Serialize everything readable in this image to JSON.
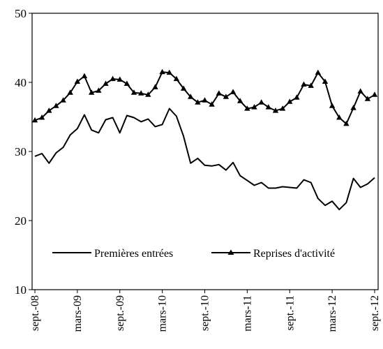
{
  "chart_data": {
    "type": "line",
    "title": "",
    "xlabel": "",
    "ylabel": "",
    "ylim": [
      10,
      50
    ],
    "yticks": [
      10,
      20,
      30,
      40,
      50
    ],
    "grid": false,
    "legend_position": "lower-center",
    "x_tick_labels": [
      "sept.-08",
      "mars-09",
      "sept.-09",
      "mars-10",
      "sept.-10",
      "mars-11",
      "sept.-11",
      "mars-12",
      "sept.-12"
    ],
    "x": [
      "2008-09",
      "2008-10",
      "2008-11",
      "2008-12",
      "2009-01",
      "2009-02",
      "2009-03",
      "2009-04",
      "2009-05",
      "2009-06",
      "2009-07",
      "2009-08",
      "2009-09",
      "2009-10",
      "2009-11",
      "2009-12",
      "2010-01",
      "2010-02",
      "2010-03",
      "2010-04",
      "2010-05",
      "2010-06",
      "2010-07",
      "2010-08",
      "2010-09",
      "2010-10",
      "2010-11",
      "2010-12",
      "2011-01",
      "2011-02",
      "2011-03",
      "2011-04",
      "2011-05",
      "2011-06",
      "2011-07",
      "2011-08",
      "2011-09",
      "2011-10",
      "2011-11",
      "2011-12",
      "2012-01",
      "2012-02",
      "2012-03",
      "2012-04",
      "2012-05",
      "2012-06",
      "2012-07",
      "2012-08",
      "2012-09"
    ],
    "series": [
      {
        "name": "Premières entrées",
        "marker": "none",
        "color": "#000000",
        "values": [
          29.3,
          29.7,
          28.3,
          29.8,
          30.6,
          32.4,
          33.3,
          35.3,
          33.1,
          32.7,
          34.6,
          34.9,
          32.7,
          35.2,
          34.9,
          34.3,
          34.7,
          33.6,
          33.9,
          36.2,
          35.1,
          32.2,
          28.3,
          29.0,
          28.0,
          27.9,
          28.1,
          27.3,
          28.4,
          26.5,
          25.8,
          25.1,
          25.5,
          24.7,
          24.7,
          24.9,
          24.8,
          24.7,
          25.9,
          25.5,
          23.2,
          22.2,
          22.8,
          21.6,
          22.6,
          26.1,
          24.8,
          25.3,
          26.2
        ]
      },
      {
        "name": "Reprises d'activité",
        "marker": "triangle",
        "color": "#000000",
        "values": [
          34.5,
          34.9,
          35.9,
          36.6,
          37.4,
          38.5,
          40.1,
          40.9,
          38.5,
          38.8,
          39.8,
          40.5,
          40.4,
          39.8,
          38.5,
          38.4,
          38.2,
          39.3,
          41.5,
          41.4,
          40.5,
          39.1,
          37.9,
          37.1,
          37.4,
          36.8,
          38.4,
          37.9,
          38.6,
          37.3,
          36.2,
          36.4,
          37.1,
          36.4,
          35.9,
          36.2,
          37.2,
          37.8,
          39.7,
          39.5,
          41.4,
          40.1,
          36.6,
          34.9,
          34.0,
          36.3,
          38.7,
          37.6,
          38.2
        ]
      }
    ]
  }
}
